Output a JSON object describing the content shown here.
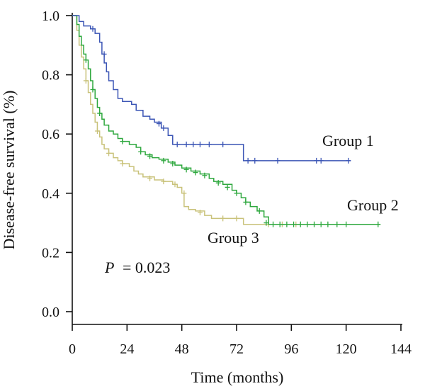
{
  "chart_data": {
    "type": "line",
    "title": "",
    "xlabel": "Time (months)",
    "ylabel": "Disease-free survival (%)",
    "xlim": [
      0,
      144
    ],
    "ylim": [
      0,
      1.0
    ],
    "xticks": [
      0,
      24,
      48,
      72,
      96,
      120,
      144
    ],
    "xtick_labels": [
      "0",
      "24",
      "48",
      "72",
      "96",
      "120",
      "144"
    ],
    "yticks": [
      0.0,
      0.2,
      0.4,
      0.6,
      0.8,
      1.0
    ],
    "ytick_labels": [
      "0.0",
      "0.2",
      "0.4",
      "0.6",
      "0.8",
      "1.0"
    ],
    "grid": false,
    "annotation": {
      "p_label": "P",
      "p_value": "= 0.023"
    },
    "series": [
      {
        "name": "Group 1",
        "color": "#3b55b5",
        "steps": [
          [
            0,
            1.0
          ],
          [
            3,
            0.98
          ],
          [
            5,
            0.965
          ],
          [
            8,
            0.955
          ],
          [
            10,
            0.94
          ],
          [
            12,
            0.91
          ],
          [
            13,
            0.87
          ],
          [
            14,
            0.84
          ],
          [
            15,
            0.81
          ],
          [
            16,
            0.78
          ],
          [
            18,
            0.75
          ],
          [
            20,
            0.72
          ],
          [
            22,
            0.71
          ],
          [
            26,
            0.7
          ],
          [
            28,
            0.68
          ],
          [
            31,
            0.66
          ],
          [
            34,
            0.65
          ],
          [
            36,
            0.64
          ],
          [
            39,
            0.62
          ],
          [
            42,
            0.595
          ],
          [
            44,
            0.565
          ],
          [
            75,
            0.51
          ],
          [
            122,
            0.51
          ]
        ],
        "censors": [
          [
            9,
            0.955
          ],
          [
            14,
            0.87
          ],
          [
            38,
            0.635
          ],
          [
            40,
            0.62
          ],
          [
            46,
            0.565
          ],
          [
            50,
            0.565
          ],
          [
            53,
            0.565
          ],
          [
            56,
            0.565
          ],
          [
            60,
            0.565
          ],
          [
            66,
            0.565
          ],
          [
            77,
            0.51
          ],
          [
            80,
            0.51
          ],
          [
            90,
            0.51
          ],
          [
            107,
            0.51
          ],
          [
            109,
            0.51
          ],
          [
            121,
            0.51
          ]
        ]
      },
      {
        "name": "Group 2",
        "color": "#2ea83e",
        "steps": [
          [
            0,
            1.0
          ],
          [
            2,
            0.97
          ],
          [
            3,
            0.93
          ],
          [
            4,
            0.9
          ],
          [
            5,
            0.87
          ],
          [
            6,
            0.85
          ],
          [
            7,
            0.82
          ],
          [
            8,
            0.78
          ],
          [
            9,
            0.75
          ],
          [
            10,
            0.72
          ],
          [
            11,
            0.69
          ],
          [
            12,
            0.67
          ],
          [
            13,
            0.65
          ],
          [
            14,
            0.63
          ],
          [
            16,
            0.61
          ],
          [
            18,
            0.6
          ],
          [
            20,
            0.585
          ],
          [
            22,
            0.575
          ],
          [
            25,
            0.565
          ],
          [
            28,
            0.555
          ],
          [
            30,
            0.54
          ],
          [
            32,
            0.53
          ],
          [
            35,
            0.52
          ],
          [
            38,
            0.515
          ],
          [
            42,
            0.505
          ],
          [
            45,
            0.495
          ],
          [
            48,
            0.485
          ],
          [
            52,
            0.475
          ],
          [
            56,
            0.465
          ],
          [
            60,
            0.45
          ],
          [
            62,
            0.44
          ],
          [
            66,
            0.43
          ],
          [
            70,
            0.41
          ],
          [
            72,
            0.4
          ],
          [
            74,
            0.385
          ],
          [
            76,
            0.37
          ],
          [
            78,
            0.355
          ],
          [
            81,
            0.34
          ],
          [
            84,
            0.32
          ],
          [
            86,
            0.295
          ],
          [
            135,
            0.295
          ]
        ],
        "censors": [
          [
            6,
            0.85
          ],
          [
            9,
            0.75
          ],
          [
            12,
            0.67
          ],
          [
            22,
            0.575
          ],
          [
            30,
            0.54
          ],
          [
            34,
            0.525
          ],
          [
            40,
            0.51
          ],
          [
            44,
            0.5
          ],
          [
            50,
            0.48
          ],
          [
            54,
            0.47
          ],
          [
            58,
            0.46
          ],
          [
            64,
            0.435
          ],
          [
            68,
            0.42
          ],
          [
            72,
            0.4
          ],
          [
            76,
            0.37
          ],
          [
            82,
            0.34
          ],
          [
            85,
            0.3
          ],
          [
            88,
            0.295
          ],
          [
            91,
            0.295
          ],
          [
            94,
            0.295
          ],
          [
            97,
            0.295
          ],
          [
            100,
            0.295
          ],
          [
            103,
            0.295
          ],
          [
            106,
            0.295
          ],
          [
            109,
            0.295
          ],
          [
            112,
            0.295
          ],
          [
            116,
            0.295
          ],
          [
            120,
            0.295
          ],
          [
            134,
            0.295
          ]
        ]
      },
      {
        "name": "Group 3",
        "color": "#c9c27a",
        "steps": [
          [
            0,
            1.0
          ],
          [
            2,
            0.95
          ],
          [
            3,
            0.9
          ],
          [
            4,
            0.86
          ],
          [
            5,
            0.82
          ],
          [
            6,
            0.78
          ],
          [
            7,
            0.74
          ],
          [
            8,
            0.7
          ],
          [
            9,
            0.67
          ],
          [
            10,
            0.64
          ],
          [
            11,
            0.61
          ],
          [
            12,
            0.59
          ],
          [
            13,
            0.565
          ],
          [
            14,
            0.55
          ],
          [
            16,
            0.535
          ],
          [
            18,
            0.52
          ],
          [
            20,
            0.51
          ],
          [
            22,
            0.5
          ],
          [
            25,
            0.49
          ],
          [
            27,
            0.475
          ],
          [
            29,
            0.465
          ],
          [
            31,
            0.455
          ],
          [
            36,
            0.445
          ],
          [
            40,
            0.44
          ],
          [
            44,
            0.43
          ],
          [
            46,
            0.42
          ],
          [
            48,
            0.4
          ],
          [
            49,
            0.355
          ],
          [
            51,
            0.345
          ],
          [
            54,
            0.34
          ],
          [
            58,
            0.325
          ],
          [
            61,
            0.315
          ],
          [
            75,
            0.295
          ],
          [
            100,
            0.295
          ]
        ],
        "censors": [
          [
            6,
            0.78
          ],
          [
            11,
            0.61
          ],
          [
            16,
            0.535
          ],
          [
            22,
            0.5
          ],
          [
            34,
            0.45
          ],
          [
            40,
            0.44
          ],
          [
            45,
            0.43
          ],
          [
            49,
            0.4
          ],
          [
            56,
            0.335
          ],
          [
            66,
            0.315
          ],
          [
            72,
            0.315
          ],
          [
            86,
            0.295
          ],
          [
            92,
            0.295
          ],
          [
            98,
            0.295
          ]
        ]
      }
    ],
    "labels": [
      {
        "series": "Group 1",
        "text": "Group 1"
      },
      {
        "series": "Group 2",
        "text": "Group 2"
      },
      {
        "series": "Group 3",
        "text": "Group 3"
      }
    ]
  }
}
